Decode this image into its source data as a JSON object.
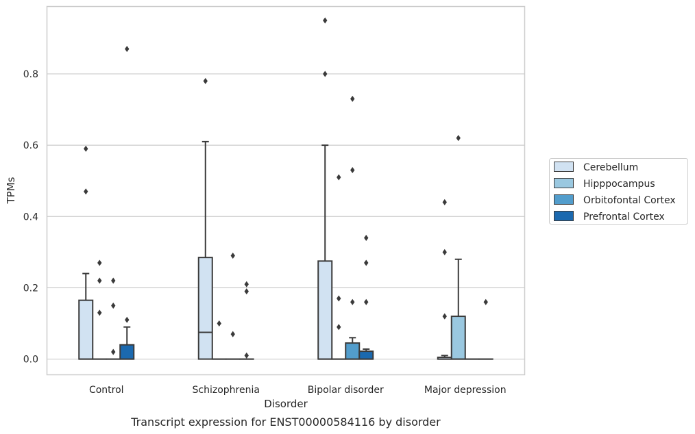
{
  "chart_data": {
    "type": "box",
    "caption": "Transcript expression for ENST00000584116 by disorder",
    "xlabel": "Disorder",
    "ylabel": "TPMs",
    "categories": [
      "Control",
      "Schizophrenia",
      "Bipolar disorder",
      "Major depression"
    ],
    "ylim": [
      -0.045,
      0.99
    ],
    "yticks": [
      0.0,
      0.2,
      0.4,
      0.6,
      0.8
    ],
    "ytick_labels": [
      "0.0",
      "0.2",
      "0.4",
      "0.6",
      "0.8"
    ],
    "grid": true,
    "legend_position": "right",
    "series": [
      {
        "name": "Cerebellum",
        "color": "#d1e2f2",
        "boxes": [
          {
            "q1": 0.0,
            "median": 0.0,
            "q3": 0.165,
            "whisker_low": 0.0,
            "whisker_high": 0.24,
            "fliers": [
              0.59,
              0.47
            ]
          },
          {
            "q1": 0.0,
            "median": 0.075,
            "q3": 0.285,
            "whisker_low": 0.0,
            "whisker_high": 0.61,
            "fliers": [
              0.78
            ]
          },
          {
            "q1": 0.0,
            "median": 0.0,
            "q3": 0.275,
            "whisker_low": 0.0,
            "whisker_high": 0.6,
            "fliers": [
              0.95,
              0.8
            ]
          },
          {
            "q1": 0.0,
            "median": 0.0,
            "q3": 0.005,
            "whisker_low": 0.0,
            "whisker_high": 0.01,
            "fliers": [
              0.44,
              0.3,
              0.12
            ]
          }
        ]
      },
      {
        "name": "Hipppocampus",
        "color": "#9ac8e0",
        "boxes": [
          {
            "q1": 0.0,
            "median": 0.0,
            "q3": 0.0,
            "whisker_low": 0.0,
            "whisker_high": 0.0,
            "fliers": [
              0.27,
              0.22,
              0.13
            ]
          },
          {
            "q1": 0.0,
            "median": 0.0,
            "q3": 0.0,
            "whisker_low": 0.0,
            "whisker_high": 0.0,
            "fliers": [
              0.1
            ]
          },
          {
            "q1": 0.0,
            "median": 0.0,
            "q3": 0.0,
            "whisker_low": 0.0,
            "whisker_high": 0.0,
            "fliers": [
              0.51,
              0.17,
              0.09
            ]
          },
          {
            "q1": 0.0,
            "median": 0.0,
            "q3": 0.12,
            "whisker_low": 0.0,
            "whisker_high": 0.28,
            "fliers": [
              0.62
            ]
          }
        ]
      },
      {
        "name": "Orbitofontal Cortex",
        "color": "#529dcc",
        "boxes": [
          {
            "q1": 0.0,
            "median": 0.0,
            "q3": 0.0,
            "whisker_low": 0.0,
            "whisker_high": 0.0,
            "fliers": [
              0.22,
              0.15,
              0.02
            ]
          },
          {
            "q1": 0.0,
            "median": 0.0,
            "q3": 0.0,
            "whisker_low": 0.0,
            "whisker_high": 0.0,
            "fliers": [
              0.29,
              0.07
            ]
          },
          {
            "q1": 0.0,
            "median": 0.0,
            "q3": 0.045,
            "whisker_low": 0.0,
            "whisker_high": 0.06,
            "fliers": [
              0.73,
              0.53,
              0.16
            ]
          },
          {
            "q1": 0.0,
            "median": 0.0,
            "q3": 0.0,
            "whisker_low": 0.0,
            "whisker_high": 0.0,
            "fliers": []
          }
        ]
      },
      {
        "name": "Prefrontal Cortex",
        "color": "#1b69af",
        "boxes": [
          {
            "q1": 0.0,
            "median": 0.0,
            "q3": 0.04,
            "whisker_low": 0.0,
            "whisker_high": 0.09,
            "fliers": [
              0.87,
              0.11
            ]
          },
          {
            "q1": 0.0,
            "median": 0.0,
            "q3": 0.0,
            "whisker_low": 0.0,
            "whisker_high": 0.0,
            "fliers": [
              0.21,
              0.19,
              0.01
            ]
          },
          {
            "q1": 0.0,
            "median": 0.0,
            "q3": 0.022,
            "whisker_low": 0.0,
            "whisker_high": 0.028,
            "fliers": [
              0.34,
              0.27,
              0.16
            ]
          },
          {
            "q1": 0.0,
            "median": 0.0,
            "q3": 0.0,
            "whisker_low": 0.0,
            "whisker_high": 0.0,
            "fliers": [
              0.16
            ]
          }
        ]
      }
    ]
  }
}
